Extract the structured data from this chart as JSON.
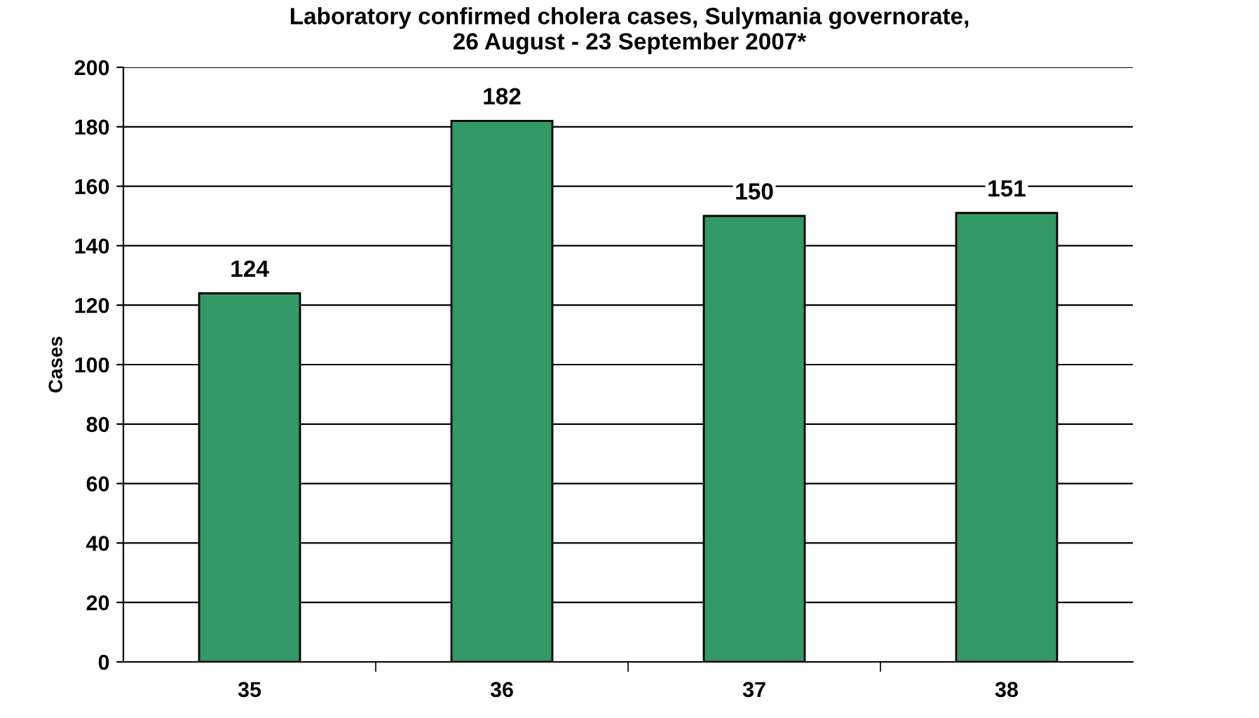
{
  "chart_data": {
    "type": "bar",
    "title": "Laboratory confirmed cholera cases, Sulymania governorate,\n26 August - 23 September 2007*",
    "ylabel": "Cases",
    "categories": [
      "35",
      "36",
      "37",
      "38"
    ],
    "values": [
      124,
      182,
      150,
      151
    ],
    "color": "#339966",
    "ylim": [
      0,
      200
    ],
    "yticks": [
      0,
      20,
      40,
      60,
      80,
      100,
      120,
      140,
      160,
      180,
      200
    ],
    "grid": "y",
    "data_labels": true
  }
}
